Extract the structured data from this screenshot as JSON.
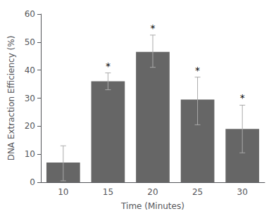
{
  "chart_data": {
    "type": "bar",
    "xlabel": "Time (Minutes)",
    "ylabel": "DNA Extraction Efficiency (%)",
    "categories": [
      "10",
      "15",
      "20",
      "25",
      "30"
    ],
    "values": [
      7.0,
      36.0,
      46.5,
      29.5,
      19.0
    ],
    "errors": {
      "upper": [
        6.0,
        3.0,
        6.0,
        8.0,
        8.5
      ],
      "lower": [
        6.5,
        3.0,
        5.5,
        9.0,
        8.5
      ],
      "color": "#aaaaaa"
    },
    "color": "#666666",
    "annotations": [
      {
        "category": "15",
        "text": "*"
      },
      {
        "category": "20",
        "text": "*"
      },
      {
        "category": "25",
        "text": "*"
      },
      {
        "category": "30",
        "text": "*"
      }
    ],
    "ylim": [
      0,
      60
    ],
    "yticks": [
      0,
      10,
      20,
      30,
      40,
      50,
      60
    ],
    "grid": false
  }
}
